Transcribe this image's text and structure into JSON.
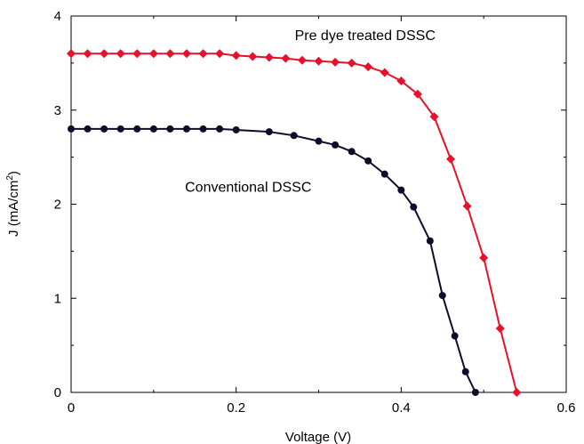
{
  "chart_data": {
    "type": "line",
    "xlabel": "Voltage (V)",
    "ylabel": "J (mA/cm",
    "ylabel_sup": "2",
    "ylabel_end": ")",
    "xlim": [
      0,
      0.6
    ],
    "ylim": [
      0,
      4
    ],
    "xticks": [
      "0",
      "0.2",
      "0.4",
      "0.6"
    ],
    "yticks": [
      "0",
      "1",
      "2",
      "3",
      "4"
    ],
    "grid": false,
    "series": [
      {
        "name": "Pre dye treated DSSC",
        "color": "#e8102a",
        "marker": "diamond",
        "label_x": 0.271,
        "label_y": 3.8,
        "x": [
          0,
          0.02,
          0.04,
          0.06,
          0.08,
          0.1,
          0.12,
          0.14,
          0.16,
          0.18,
          0.2,
          0.22,
          0.24,
          0.26,
          0.28,
          0.3,
          0.32,
          0.34,
          0.36,
          0.38,
          0.4,
          0.42,
          0.44,
          0.46,
          0.48,
          0.5,
          0.52,
          0.54
        ],
        "y": [
          3.6,
          3.6,
          3.6,
          3.6,
          3.6,
          3.6,
          3.6,
          3.6,
          3.6,
          3.6,
          3.58,
          3.57,
          3.56,
          3.55,
          3.53,
          3.52,
          3.51,
          3.5,
          3.46,
          3.4,
          3.31,
          3.17,
          2.93,
          2.48,
          1.98,
          1.43,
          0.68,
          0
        ]
      },
      {
        "name": "Conventional DSSC",
        "color": "#0d0d2b",
        "marker": "circle",
        "label_x": 0.138,
        "label_y": 2.19,
        "x": [
          0,
          0.02,
          0.04,
          0.06,
          0.08,
          0.1,
          0.12,
          0.14,
          0.16,
          0.18,
          0.2,
          0.24,
          0.27,
          0.3,
          0.32,
          0.34,
          0.36,
          0.38,
          0.4,
          0.415,
          0.435,
          0.45,
          0.465,
          0.478,
          0.49
        ],
        "y": [
          2.8,
          2.8,
          2.8,
          2.8,
          2.8,
          2.8,
          2.8,
          2.8,
          2.8,
          2.8,
          2.79,
          2.77,
          2.73,
          2.67,
          2.63,
          2.56,
          2.46,
          2.32,
          2.15,
          1.97,
          1.61,
          1.03,
          0.6,
          0.22,
          0
        ]
      }
    ]
  }
}
